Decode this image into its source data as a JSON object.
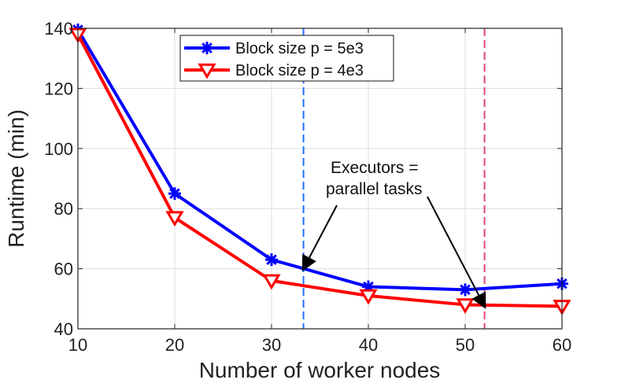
{
  "chart_data": {
    "type": "line",
    "title": "",
    "xlabel": "Number of worker nodes",
    "ylabel": "Runtime (min)",
    "xlim": [
      10,
      60
    ],
    "ylim": [
      40,
      140
    ],
    "xticks": [
      10,
      20,
      30,
      40,
      50,
      60
    ],
    "yticks": [
      40,
      60,
      80,
      100,
      120,
      140
    ],
    "x_tick_labels": [
      "10",
      "20",
      "30",
      "40",
      "50",
      "60"
    ],
    "y_tick_labels": [
      "40",
      "60",
      "80",
      "100",
      "120",
      "140"
    ],
    "grid": true,
    "legend_position": "top-center",
    "x": [
      10,
      20,
      30,
      40,
      50,
      60
    ],
    "series": [
      {
        "name": "Block size p = 5e3",
        "values": [
          139.5,
          85,
          63,
          54,
          53,
          55
        ],
        "color": "#0000ff",
        "marker": "asterisk"
      },
      {
        "name": "Block size p = 4e3",
        "values": [
          138,
          77,
          56,
          51,
          48,
          47.5
        ],
        "color": "#ff0000",
        "marker": "triangle-down"
      }
    ],
    "reference_lines": [
      {
        "x": 33.3,
        "color": "#1e6fff",
        "style": "dashed"
      },
      {
        "x": 52,
        "color": "#e0457b",
        "style": "dashed"
      }
    ],
    "annotation": {
      "lines": [
        "Executors =",
        "parallel tasks"
      ],
      "arrows": [
        {
          "to_x": 33.3,
          "to_y": 60
        },
        {
          "to_x": 52,
          "to_y": 47.5
        }
      ]
    }
  }
}
